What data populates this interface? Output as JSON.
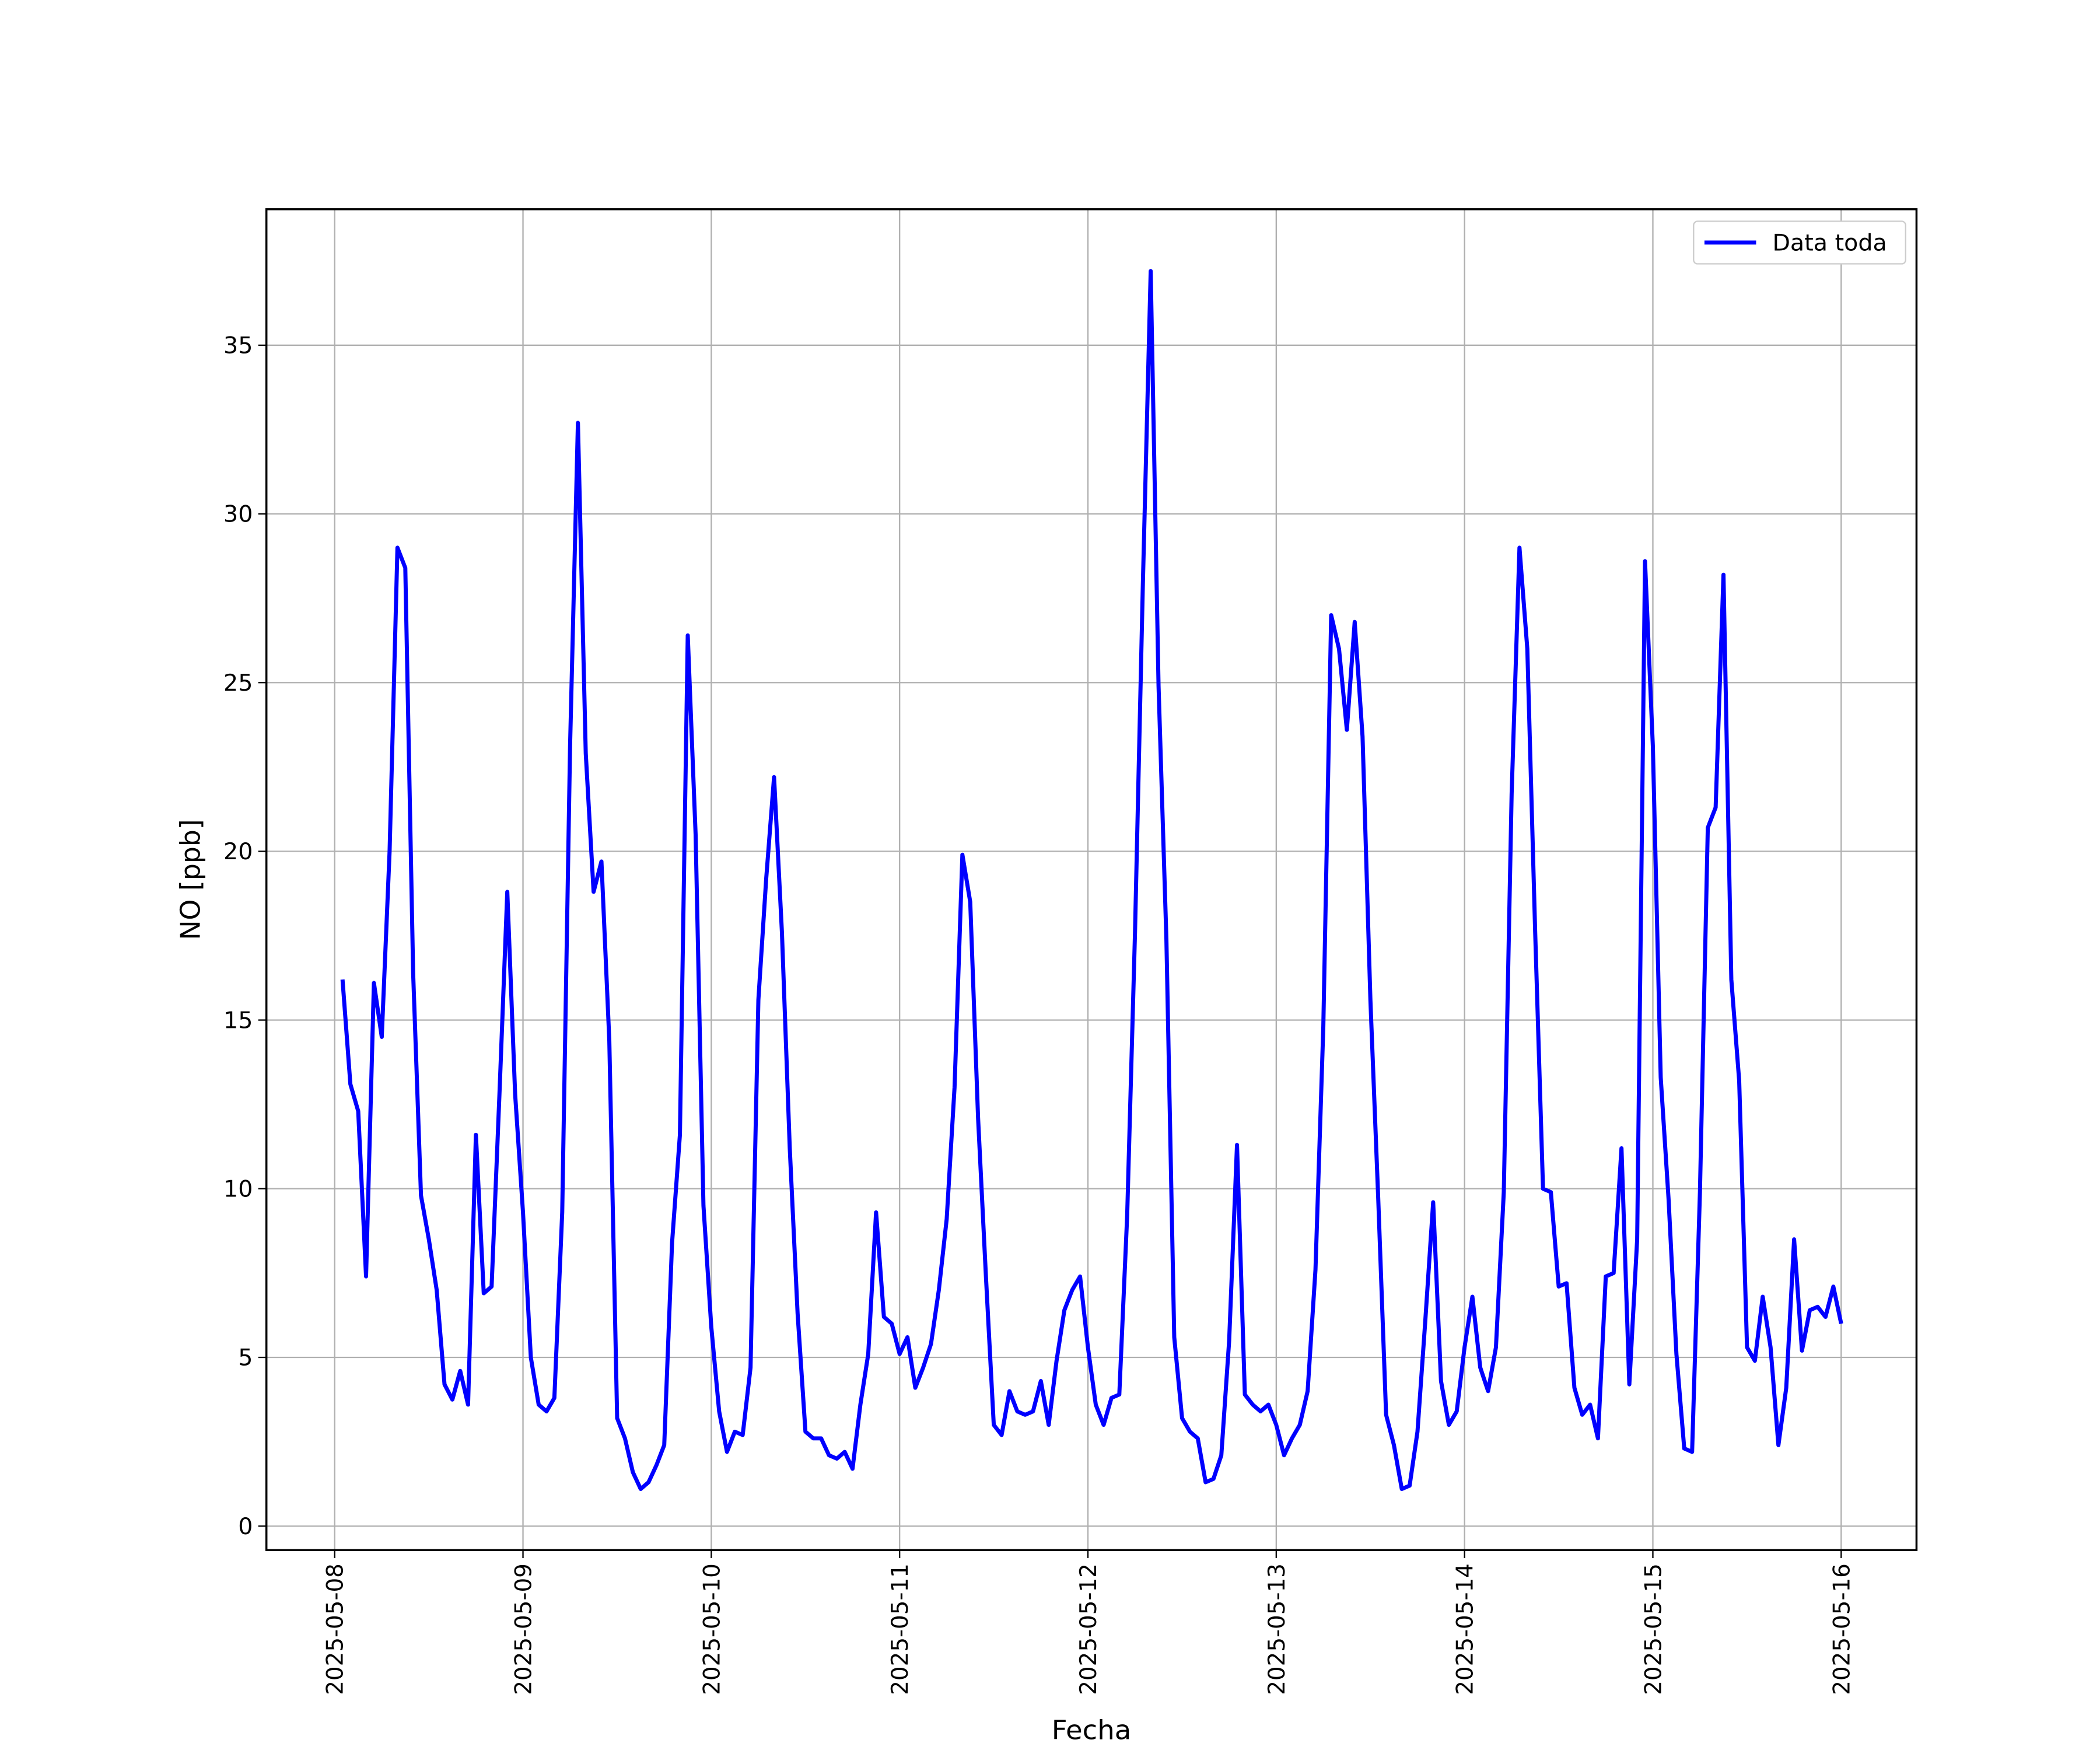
{
  "chart_data": {
    "type": "line",
    "x_label": "Fecha",
    "y_label": "NO [ppb]",
    "x": [
      1,
      2,
      3,
      4,
      5,
      6,
      7,
      8,
      9,
      10,
      11,
      12,
      13,
      14,
      15,
      16,
      17,
      18,
      19,
      20,
      21,
      22,
      23,
      24,
      25,
      26,
      27,
      28,
      29,
      30,
      31,
      32,
      33,
      34,
      35,
      36,
      37,
      38,
      39,
      40,
      41,
      42,
      43,
      44,
      45,
      46,
      47,
      48,
      49,
      50,
      51,
      52,
      53,
      54,
      55,
      56,
      57,
      58,
      59,
      60,
      61,
      62,
      63,
      64,
      65,
      66,
      67,
      68,
      69,
      70,
      71,
      72,
      73,
      74,
      75,
      76,
      77,
      78,
      79,
      80,
      81,
      82,
      83,
      84,
      85,
      86,
      87,
      88,
      89,
      90,
      91,
      92,
      93,
      94,
      95,
      96,
      97,
      98,
      99,
      100,
      101,
      102,
      103,
      104,
      105,
      106,
      107,
      108,
      109,
      110,
      111,
      112,
      113,
      114,
      115,
      116,
      117,
      118,
      119,
      120,
      121,
      122,
      123,
      124,
      125,
      126,
      127,
      128,
      129,
      130,
      131,
      132,
      133,
      134,
      135,
      136,
      137,
      138,
      139,
      140,
      141,
      142,
      143,
      144,
      145,
      146,
      147,
      148,
      149,
      150,
      151,
      152,
      153,
      154,
      155,
      156,
      157,
      158,
      159,
      160,
      161,
      162,
      163,
      164,
      165,
      166,
      167,
      168,
      169,
      170,
      171,
      172,
      173,
      174,
      175,
      176,
      177,
      178,
      179,
      180,
      181,
      182,
      183,
      184,
      185,
      186,
      187,
      188,
      189,
      190,
      191,
      192
    ],
    "series": [
      {
        "name": "Data toda",
        "color": "#0000ff",
        "values": [
          16.2,
          13.1,
          12.3,
          7.4,
          16.1,
          14.5,
          20.0,
          29.0,
          28.4,
          16.4,
          9.8,
          8.5,
          7.0,
          4.2,
          3.75,
          4.6,
          3.6,
          11.6,
          6.9,
          7.1,
          12.8,
          18.8,
          12.8,
          9.3,
          5.0,
          3.6,
          3.4,
          3.8,
          9.3,
          23.1,
          32.7,
          22.9,
          18.8,
          19.7,
          14.4,
          3.2,
          2.6,
          1.6,
          1.1,
          1.3,
          1.8,
          2.4,
          8.4,
          11.6,
          26.4,
          20.5,
          9.5,
          5.9,
          3.4,
          2.2,
          2.8,
          2.7,
          4.7,
          15.6,
          19.2,
          22.2,
          17.6,
          11.2,
          6.3,
          2.8,
          2.6,
          2.6,
          2.1,
          2.0,
          2.2,
          1.7,
          3.6,
          5.1,
          9.3,
          6.2,
          6.0,
          5.1,
          5.6,
          4.1,
          4.7,
          5.4,
          7.0,
          9.1,
          13.0,
          19.9,
          18.5,
          12.1,
          7.4,
          3.0,
          2.7,
          4.0,
          3.4,
          3.3,
          3.4,
          4.3,
          3.0,
          4.9,
          6.4,
          7.0,
          7.4,
          5.3,
          3.6,
          3.0,
          3.8,
          3.9,
          9.2,
          17.6,
          27.9,
          37.2,
          24.9,
          17.4,
          5.6,
          3.2,
          2.8,
          2.6,
          1.3,
          1.4,
          2.1,
          5.5,
          11.3,
          3.9,
          3.6,
          3.4,
          3.6,
          3.0,
          2.1,
          2.6,
          3.0,
          4.0,
          7.6,
          14.8,
          27.0,
          26.0,
          23.6,
          26.8,
          23.4,
          15.6,
          9.7,
          3.3,
          2.4,
          1.1,
          1.2,
          2.8,
          6.1,
          9.6,
          4.3,
          3.0,
          3.4,
          5.3,
          6.8,
          4.7,
          4.0,
          5.3,
          9.9,
          21.7,
          29.0,
          26.0,
          17.6,
          10.0,
          9.9,
          7.1,
          7.2,
          4.1,
          3.3,
          3.6,
          2.6,
          7.4,
          7.5,
          11.2,
          4.2,
          8.5,
          28.6,
          23.1,
          13.3,
          9.7,
          5.1,
          2.3,
          2.2,
          9.9,
          20.7,
          21.3,
          28.2,
          16.2,
          13.2,
          5.3,
          4.9,
          6.8,
          5.3,
          2.4,
          4.1,
          8.5,
          5.2,
          6.4,
          6.5,
          6.2,
          7.1,
          6.0
        ]
      }
    ],
    "xlim": [
      -8.7,
      201.6
    ],
    "xticks": [
      {
        "value": 0,
        "label": "2025-05-08"
      },
      {
        "value": 24,
        "label": "2025-05-09"
      },
      {
        "value": 48,
        "label": "2025-05-10"
      },
      {
        "value": 72,
        "label": "2025-05-11"
      },
      {
        "value": 96,
        "label": "2025-05-12"
      },
      {
        "value": 120,
        "label": "2025-05-13"
      },
      {
        "value": 144,
        "label": "2025-05-14"
      },
      {
        "value": 168,
        "label": "2025-05-15"
      },
      {
        "value": 192,
        "label": "2025-05-16"
      }
    ],
    "ylim": [
      -0.71,
      39.03
    ],
    "yticks": [
      0,
      5,
      10,
      15,
      20,
      25,
      30,
      35
    ],
    "grid": true,
    "legend": "upper right"
  }
}
